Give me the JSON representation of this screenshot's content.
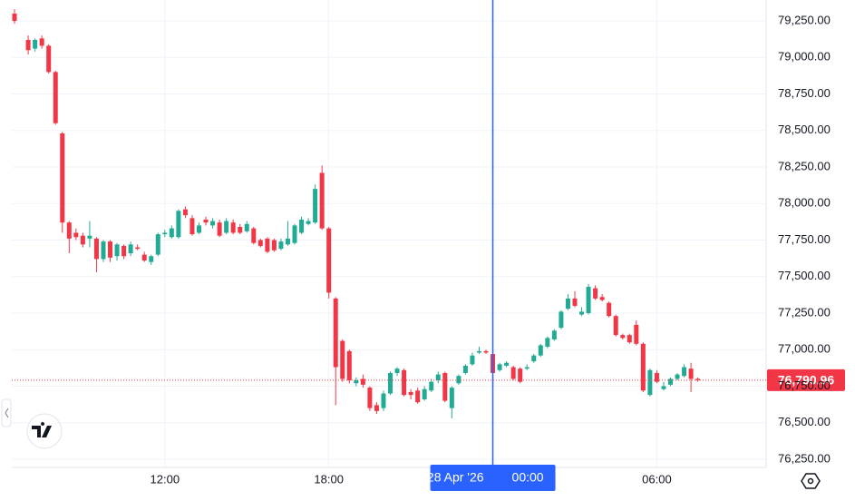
{
  "chart_data": {
    "type": "candlestick",
    "x": [
      6.5,
      7.0,
      7.25,
      7.5,
      7.75,
      8.0,
      8.25,
      8.5,
      8.75,
      9.0,
      9.25,
      9.5,
      9.75,
      10.0,
      10.25,
      10.5,
      10.75,
      11.0,
      11.25,
      11.5,
      11.75,
      12.0,
      12.25,
      12.5,
      12.75,
      13.0,
      13.25,
      13.5,
      13.75,
      14.0,
      14.25,
      14.5,
      14.75,
      15.0,
      15.25,
      15.5,
      15.75,
      16.0,
      16.25,
      16.5,
      16.75,
      17.0,
      17.25,
      17.5,
      17.75,
      18.0,
      18.25,
      18.5,
      18.75,
      19.0,
      19.25,
      19.5,
      19.75,
      20.0,
      20.25,
      20.5,
      20.75,
      21.0,
      21.25,
      21.5,
      21.75,
      22.0,
      22.25,
      22.5,
      22.75,
      23.0,
      23.25,
      23.5,
      23.75,
      24.0,
      24.25,
      24.5,
      24.75,
      25.0,
      25.25,
      25.5,
      25.75,
      26.0,
      26.25,
      26.5,
      26.75,
      27.0,
      27.25,
      27.5,
      27.75,
      28.0,
      28.25,
      28.5,
      28.75,
      29.0,
      29.25,
      29.5,
      29.75,
      30.0,
      30.25,
      30.5,
      30.75,
      31.0,
      31.25,
      31.5
    ],
    "open": [
      79300,
      79120,
      79060,
      79130,
      79080,
      78900,
      78480,
      77870,
      77800,
      77780,
      77760,
      77760,
      77620,
      77740,
      77640,
      77710,
      77660,
      77700,
      77650,
      77600,
      77650,
      77790,
      77770,
      77770,
      77960,
      77900,
      77800,
      77890,
      77850,
      77870,
      77800,
      77870,
      77840,
      77810,
      77830,
      77750,
      77760,
      77750,
      77690,
      77720,
      77730,
      77800,
      77860,
      77870,
      78210,
      77830,
      77350,
      77060,
      76990,
      76770,
      76800,
      76740,
      76620,
      76600,
      76700,
      76840,
      76860,
      76710,
      76720,
      76660,
      76720,
      76790,
      76840,
      76600,
      76770,
      76840,
      76900,
      76980,
      76990,
      76970,
      76860,
      76890,
      76880,
      76870,
      76870,
      76920,
      76960,
      77020,
      77070,
      77150,
      77280,
      77350,
      77240,
      77250,
      77420,
      77360,
      77320,
      77230,
      77100,
      77100,
      77170,
      77040,
      76690,
      76840,
      76730,
      76760,
      76800,
      76820,
      76870,
      76800
    ],
    "high": [
      79330,
      79150,
      79130,
      79150,
      79090,
      78910,
      78490,
      77880,
      77830,
      77800,
      77880,
      77770,
      77750,
      77750,
      77730,
      77720,
      77740,
      77720,
      77670,
      77650,
      77800,
      77820,
      77850,
      77960,
      77980,
      77920,
      77870,
      77910,
      77900,
      77890,
      77900,
      77890,
      77860,
      77880,
      77840,
      77760,
      77770,
      77760,
      77760,
      77880,
      77860,
      77910,
      77900,
      78130,
      78260,
      77840,
      77360,
      77070,
      77000,
      76810,
      76830,
      76750,
      76640,
      76720,
      76850,
      76880,
      76870,
      76730,
      76740,
      76750,
      76800,
      76850,
      76850,
      76750,
      76830,
      76900,
      76980,
      77020,
      77000,
      77000,
      76910,
      76920,
      76890,
      76880,
      76900,
      76970,
      77040,
      77090,
      77140,
      77270,
      77380,
      77400,
      77290,
      77450,
      77440,
      77380,
      77330,
      77240,
      77110,
      77110,
      77200,
      77050,
      76870,
      76860,
      76780,
      76810,
      76840,
      76900,
      76910,
      76810
    ],
    "low": [
      79230,
      79020,
      79040,
      79060,
      78890,
      78540,
      77800,
      77660,
      77750,
      77700,
      77700,
      77530,
      77600,
      77600,
      77610,
      77620,
      77640,
      77680,
      77600,
      77580,
      77640,
      77770,
      77760,
      77760,
      77900,
      77780,
      77790,
      77850,
      77830,
      77770,
      77790,
      77790,
      77790,
      77800,
      77720,
      77700,
      77660,
      77670,
      77680,
      77710,
      77720,
      77790,
      77850,
      77860,
      77820,
      77350,
      76620,
      76780,
      76770,
      76750,
      76740,
      76580,
      76560,
      76580,
      76690,
      76820,
      76680,
      76660,
      76630,
      76650,
      76710,
      76770,
      76640,
      76530,
      76760,
      76830,
      76890,
      76970,
      76970,
      76830,
      76850,
      76880,
      76790,
      76770,
      76860,
      76910,
      76950,
      77010,
      77060,
      77140,
      77270,
      77290,
      77230,
      77240,
      77340,
      77330,
      77220,
      77090,
      77070,
      77040,
      77030,
      76710,
      76680,
      76770,
      76720,
      76750,
      76790,
      76810,
      76710,
      76780
    ],
    "close": [
      79250,
      79050,
      79120,
      79080,
      78900,
      78550,
      77870,
      77760,
      77770,
      77720,
      77780,
      77620,
      77740,
      77630,
      77720,
      77640,
      77720,
      77690,
      77610,
      77640,
      77790,
      77800,
      77830,
      77950,
      77920,
      77790,
      77850,
      77870,
      77880,
      77780,
      77880,
      77800,
      77800,
      77860,
      77730,
      77710,
      77670,
      77680,
      77740,
      77760,
      77850,
      77890,
      77880,
      78100,
      77830,
      77390,
      76880,
      76800,
      76790,
      76790,
      76760,
      76600,
      76580,
      76700,
      76840,
      76870,
      76690,
      76690,
      76640,
      76730,
      76780,
      76830,
      76650,
      76740,
      76820,
      76890,
      76960,
      76990,
      76980,
      76840,
      76900,
      76910,
      76800,
      76780,
      76880,
      76960,
      77030,
      77080,
      77130,
      77260,
      77350,
      77300,
      77260,
      77430,
      77350,
      77340,
      77230,
      77100,
      77080,
      77050,
      77040,
      76720,
      76860,
      76780,
      76750,
      76800,
      76830,
      76880,
      76800,
      76790.96
    ],
    "up_color": "#22ab94",
    "down_color": "#f23645",
    "xlim": [
      6.4,
      34.0
    ],
    "xticks": [
      {
        "value": 12,
        "label": "12:00"
      },
      {
        "value": 18,
        "label": "18:00"
      },
      {
        "value": 30,
        "label": "06:00"
      }
    ],
    "ylim": [
      76194,
      79393
    ],
    "yticks": [
      {
        "value": 76250,
        "label": "76,250.00"
      },
      {
        "value": 76500,
        "label": "76,500.00"
      },
      {
        "value": 76750,
        "label": "76,750.00"
      },
      {
        "value": 77000,
        "label": "77,000.00"
      },
      {
        "value": 77250,
        "label": "77,250.00"
      },
      {
        "value": 77500,
        "label": "77,500.00"
      },
      {
        "value": 77750,
        "label": "77,750.00"
      },
      {
        "value": 78000,
        "label": "78,000.00"
      },
      {
        "value": 78250,
        "label": "78,250.00"
      },
      {
        "value": 78500,
        "label": "78,500.00"
      },
      {
        "value": 78750,
        "label": "78,750.00"
      },
      {
        "value": 79000,
        "label": "79,000.00"
      },
      {
        "value": 79250,
        "label": "79,250.00"
      }
    ],
    "grid": true,
    "last_price": {
      "value": 76790.96,
      "label": "76,790.96"
    },
    "crosshair": {
      "x": 24,
      "date": "28 Apr '26",
      "time": "00:00",
      "color": "#2962ff"
    }
  }
}
